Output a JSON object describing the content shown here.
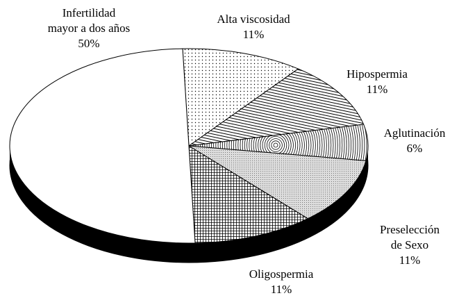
{
  "chart_data": {
    "type": "pie",
    "categories": [
      "Infertilidad\nmayor a dos años",
      "Alta viscosidad",
      "Hipospermia",
      "Aglutinación",
      "Preselección\nde Sexo",
      "Oligospermia"
    ],
    "values": [
      50,
      11,
      11,
      6,
      11,
      11
    ],
    "value_labels": [
      "50%",
      "11%",
      "11%",
      "6%",
      "11%",
      "11%"
    ],
    "patterns": [
      "none",
      "dots",
      "hlines",
      "rings",
      "gray-dots",
      "grid"
    ]
  }
}
